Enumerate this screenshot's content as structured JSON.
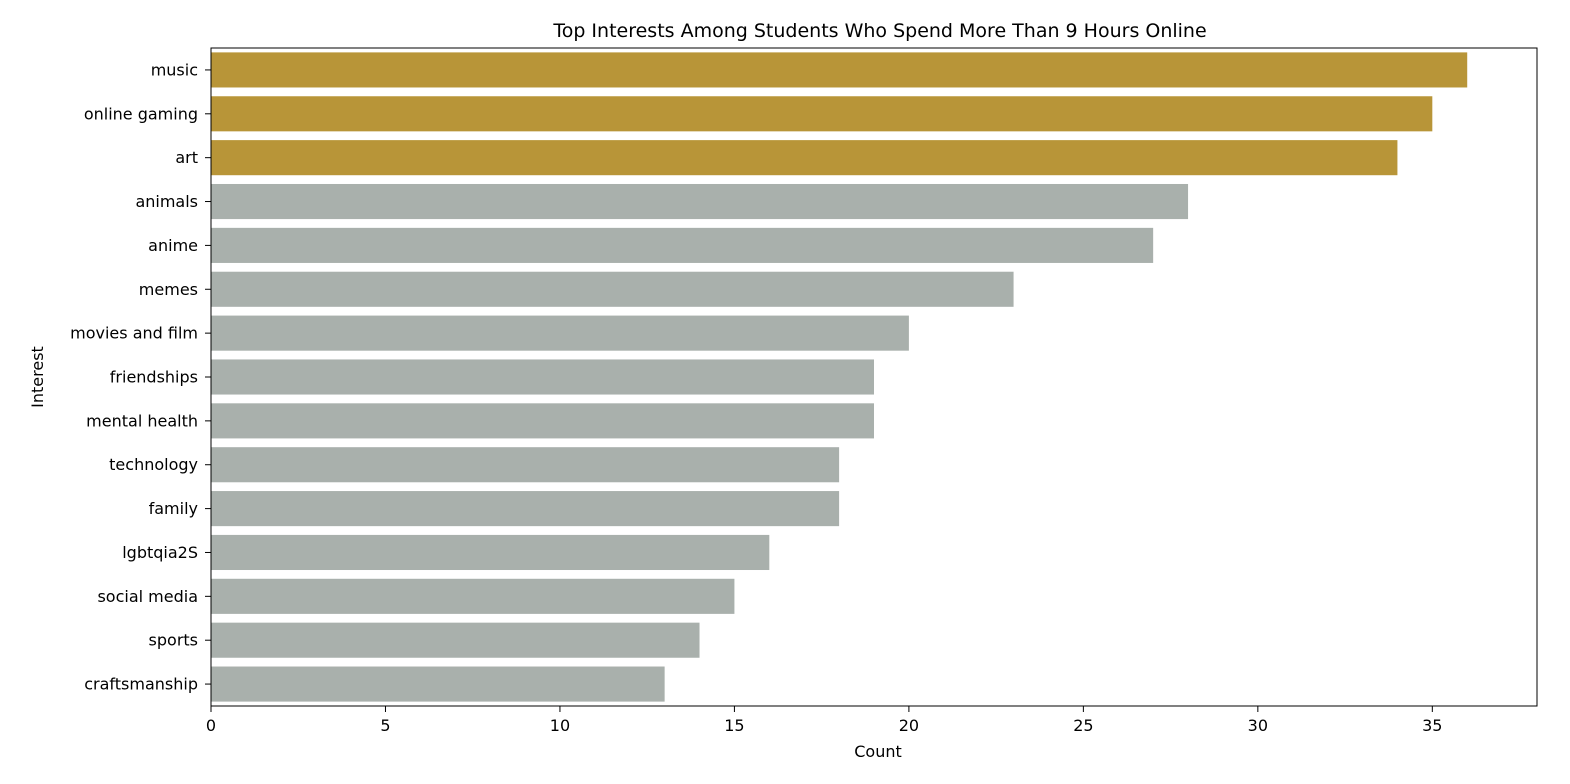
{
  "chart_data": {
    "type": "bar",
    "orientation": "horizontal",
    "title": "Top Interests Among Students Who Spend More Than 9 Hours Online",
    "xlabel": "Count",
    "ylabel": "Interest",
    "xlim": [
      0,
      38
    ],
    "xticks": [
      0,
      5,
      10,
      15,
      20,
      25,
      30,
      35
    ],
    "grid": false,
    "colors": {
      "highlight": "#b89538",
      "default": "#a9b0ac"
    },
    "categories": [
      "music",
      "online gaming",
      "art",
      "animals",
      "anime",
      "memes",
      "movies and film",
      "friendships",
      "mental health",
      "technology",
      "family",
      "lgbtqia2S",
      "social media",
      "sports",
      "craftsmanship"
    ],
    "values": [
      36,
      35,
      34,
      28,
      27,
      23,
      20,
      19,
      19,
      18,
      18,
      16,
      15,
      14,
      13
    ],
    "highlighted": [
      true,
      true,
      true,
      false,
      false,
      false,
      false,
      false,
      false,
      false,
      false,
      false,
      false,
      false,
      false
    ]
  }
}
